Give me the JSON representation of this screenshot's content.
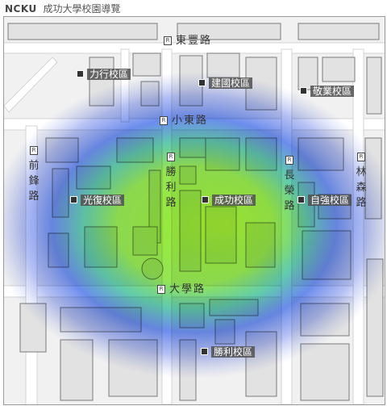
{
  "header": {
    "brand": "NCKU",
    "title": "成功大學校園導覽"
  },
  "colors": {
    "background": "#f1f1f1",
    "road": "#ffffff",
    "building_outline": "#6e6e6e",
    "heat_low": "#3a4fe0",
    "heat_mid": "#28b4c8",
    "heat_high": "#8fe832"
  },
  "campuses": [
    {
      "id": "lixing",
      "label": "力行校區",
      "icon": "building-marker-icon"
    },
    {
      "id": "jianguo",
      "label": "建國校區",
      "icon": "building-marker-icon"
    },
    {
      "id": "jingye",
      "label": "敬業校區",
      "icon": "building-marker-icon"
    },
    {
      "id": "guangfu",
      "label": "光復校區",
      "icon": "building-marker-icon"
    },
    {
      "id": "chenggong",
      "label": "成功校區",
      "icon": "building-marker-icon"
    },
    {
      "id": "ziqiang",
      "label": "自強校區",
      "icon": "building-marker-icon"
    },
    {
      "id": "shengli",
      "label": "勝利校區",
      "icon": "building-marker-icon"
    }
  ],
  "roads": {
    "dongfeng": "東豐路",
    "xiaodong": "小東路",
    "daxue": "大學路",
    "qianfeng": "前鋒路",
    "shengli": "勝利路",
    "changrong": "長榮路",
    "linsen": "林森路"
  },
  "road_sign_glyph": "R"
}
